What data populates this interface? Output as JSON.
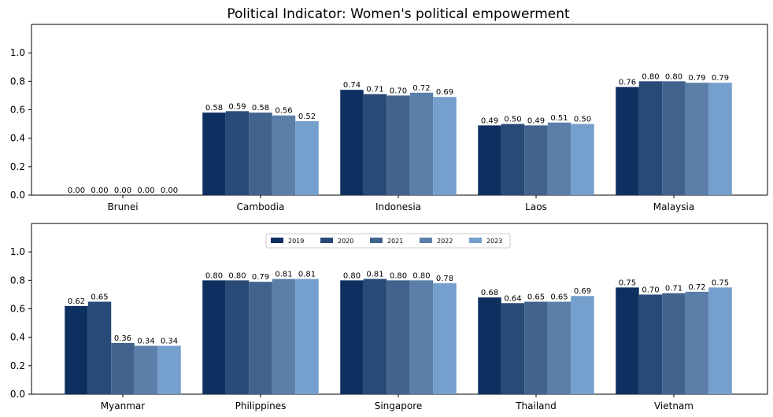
{
  "chart_data": {
    "type": "bar",
    "title": "Political Indicator: Women's political empowerment",
    "legend": {
      "placement": "top-center (lower panel)",
      "entries": [
        "2019",
        "2020",
        "2021",
        "2022",
        "2023"
      ]
    },
    "ylim": [
      0,
      1.2
    ],
    "yticks": [
      "0.0",
      "0.2",
      "0.4",
      "0.6",
      "0.8",
      "1.0"
    ],
    "series_colors": [
      "#0e3060",
      "#284a76",
      "#41638d",
      "#5b7fa8",
      "#759fcc"
    ],
    "panels": [
      {
        "categories": [
          "Brunei",
          "Cambodia",
          "Indonesia",
          "Laos",
          "Malaysia"
        ],
        "series": [
          {
            "name": "2019",
            "values": [
              0.0,
              0.58,
              0.74,
              0.49,
              0.76
            ]
          },
          {
            "name": "2020",
            "values": [
              0.0,
              0.59,
              0.71,
              0.5,
              0.8
            ]
          },
          {
            "name": "2021",
            "values": [
              0.0,
              0.58,
              0.7,
              0.49,
              0.8
            ]
          },
          {
            "name": "2022",
            "values": [
              0.0,
              0.56,
              0.72,
              0.51,
              0.79
            ]
          },
          {
            "name": "2023",
            "values": [
              0.0,
              0.52,
              0.69,
              0.5,
              0.79
            ]
          }
        ]
      },
      {
        "categories": [
          "Myanmar",
          "Philippines",
          "Singapore",
          "Thailand",
          "Vietnam"
        ],
        "series": [
          {
            "name": "2019",
            "values": [
              0.62,
              0.8,
              0.8,
              0.68,
              0.75
            ]
          },
          {
            "name": "2020",
            "values": [
              0.65,
              0.8,
              0.81,
              0.64,
              0.7
            ]
          },
          {
            "name": "2021",
            "values": [
              0.36,
              0.79,
              0.8,
              0.65,
              0.71
            ]
          },
          {
            "name": "2022",
            "values": [
              0.34,
              0.81,
              0.8,
              0.65,
              0.72
            ]
          },
          {
            "name": "2023",
            "values": [
              0.34,
              0.81,
              0.78,
              0.69,
              0.75
            ]
          }
        ]
      }
    ]
  }
}
